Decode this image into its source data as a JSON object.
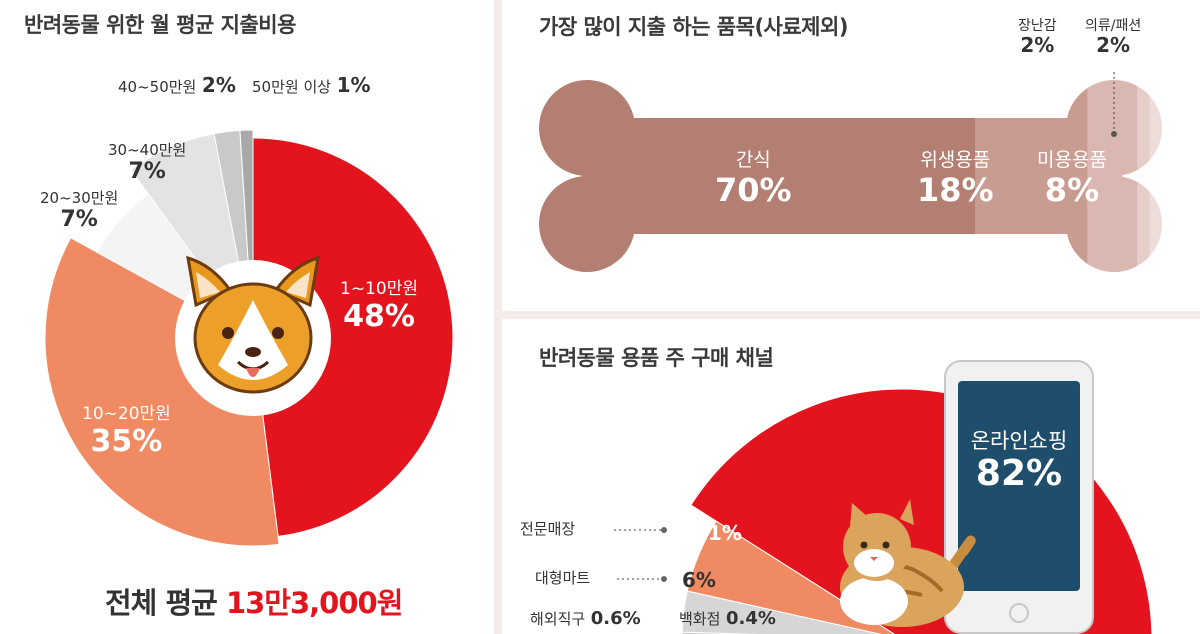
{
  "chart_data": [
    {
      "type": "pie",
      "title": "반려동물 위한 월 평균 지출비용",
      "categories": [
        "1~10만원",
        "10~20만원",
        "20~30만원",
        "30~40만원",
        "40~50만원",
        "50만원 이상"
      ],
      "values": [
        48,
        35,
        7,
        7,
        2,
        1
      ],
      "value_labels": [
        "48%",
        "35%",
        "7%",
        "7%",
        "2%",
        "1%"
      ],
      "colors": [
        "#e3141d",
        "#ef8a62",
        "#f4f4f4",
        "#e3e3e3",
        "#c9c9c9",
        "#a9a9a9"
      ],
      "summary": {
        "label": "전체 평균",
        "value": "13만3,000원"
      }
    },
    {
      "type": "bar",
      "title": "가장 많이 지출 하는 품목(사료제외)",
      "categories": [
        "간식",
        "위생용품",
        "미용용품",
        "장난감",
        "의류/패션"
      ],
      "values": [
        70,
        18,
        8,
        2,
        2
      ],
      "value_labels": [
        "70%",
        "18%",
        "8%",
        "2%",
        "2%"
      ],
      "colors": [
        "#b27f72",
        "#c99c92",
        "#dab8b1",
        "#e5cdc8",
        "#eedcd8"
      ]
    },
    {
      "type": "pie",
      "title": "반려동물 용품 주 구매 채널",
      "categories": [
        "온라인쇼핑",
        "전문매장",
        "대형마트",
        "해외직구",
        "백화점"
      ],
      "values": [
        82,
        11,
        6,
        0.6,
        0.4
      ],
      "value_labels": [
        "82%",
        "11%",
        "6%",
        "0.6%",
        "0.4%"
      ],
      "colors": [
        "#e3141d",
        "#ef8a62",
        "#d6d6d6",
        "#c9c9c9",
        "#bcbcbc"
      ]
    }
  ],
  "icons": [
    "corgi-dog-icon",
    "bone-shape",
    "smartphone-icon",
    "tabby-cat-icon"
  ],
  "colors": {
    "accent": "#e3141d",
    "salmon": "#ef8a62",
    "background": "#f4ece8",
    "phone_screen": "#1f4e6c"
  }
}
